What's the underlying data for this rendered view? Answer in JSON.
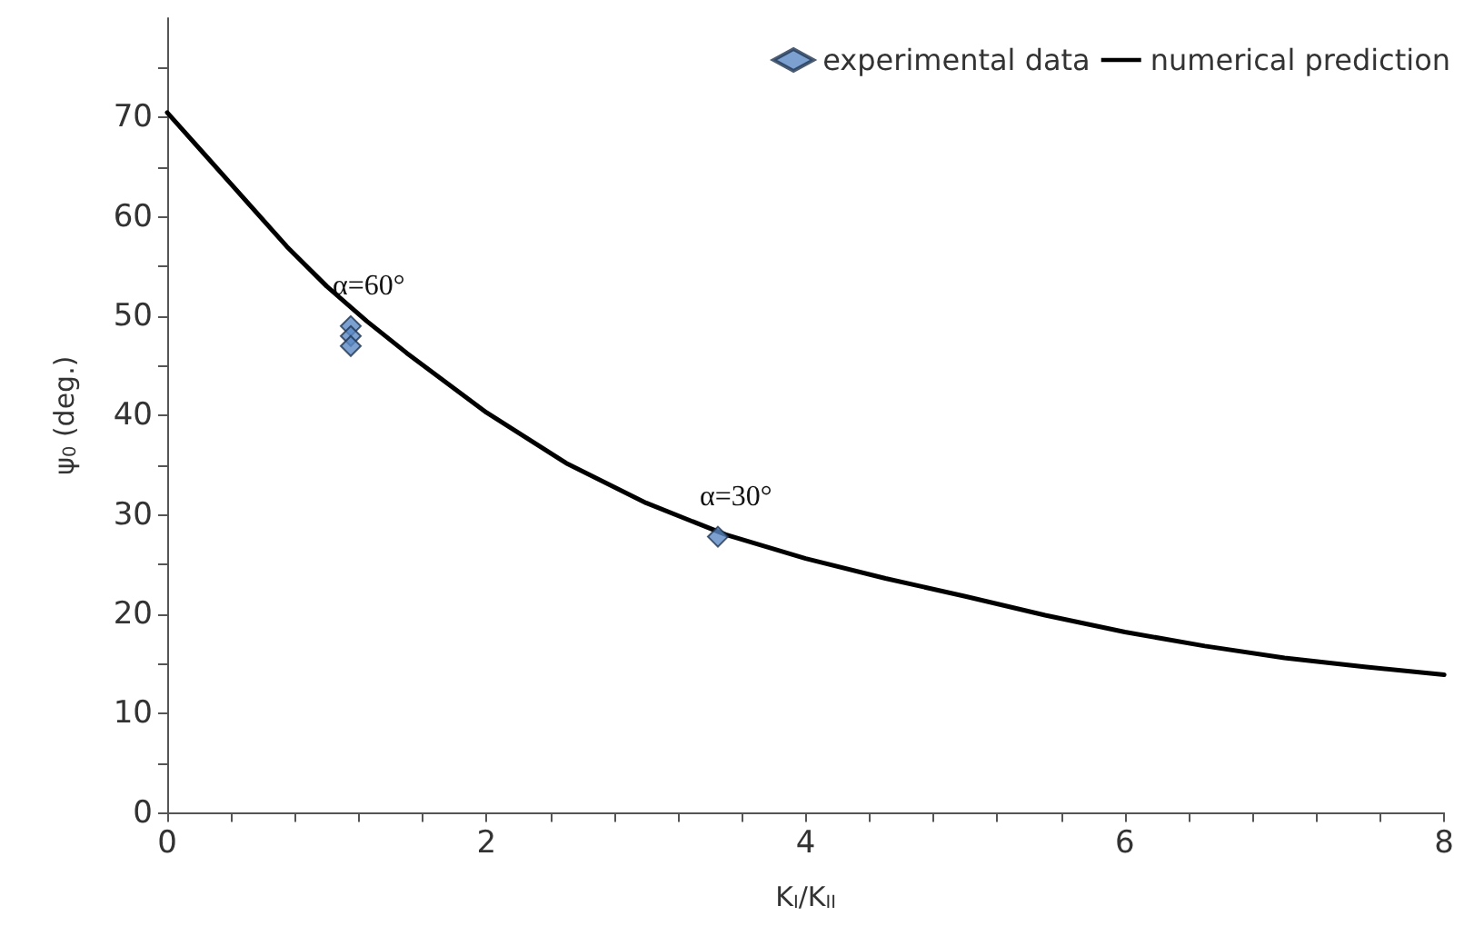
{
  "chart_data": {
    "type": "scatter",
    "xlabel": "K$_{I}$/K$_{II}$",
    "ylabel": "ψ$_{0}$ (deg.)",
    "xlim": [
      0,
      8
    ],
    "ylim": [
      0,
      80
    ],
    "xticks": [
      0,
      {
        "value": 0.4,
        "label": null
      },
      {
        "value": 0.8,
        "label": null
      },
      {
        "value": 1.2,
        "label": null
      },
      {
        "value": 1.6,
        "label": null
      },
      2,
      {
        "value": 2.4,
        "label": null
      },
      {
        "value": 2.8,
        "label": null
      },
      {
        "value": 3.2,
        "label": null
      },
      {
        "value": 3.6,
        "label": null
      },
      4,
      {
        "value": 4.4,
        "label": null
      },
      {
        "value": 4.8,
        "label": null
      },
      {
        "value": 5.2,
        "label": null
      },
      {
        "value": 5.6,
        "label": null
      },
      6,
      {
        "value": 6.4,
        "label": null
      },
      {
        "value": 6.8,
        "label": null
      },
      {
        "value": 7.2,
        "label": null
      },
      {
        "value": 7.6,
        "label": null
      },
      8
    ],
    "yticks": [
      0,
      {
        "value": 5,
        "label": null
      },
      10,
      {
        "value": 15,
        "label": null
      },
      20,
      {
        "value": 25,
        "label": null
      },
      30,
      {
        "value": 35,
        "label": null
      },
      40,
      {
        "value": 45,
        "label": null
      },
      50,
      {
        "value": 55,
        "label": null
      },
      60,
      {
        "value": 65,
        "label": null
      },
      70,
      {
        "value": 75,
        "label": null
      }
    ],
    "series": [
      {
        "name": "experimental data",
        "color": "#5b8ac6",
        "marker": "diamond",
        "x": [
          1.15,
          1.15,
          1.15,
          3.45
        ],
        "values": [
          49,
          48,
          47,
          27.8
        ]
      },
      {
        "name": "numerical prediction",
        "type": "line",
        "color": "#000000",
        "marker": "none",
        "line_style": "solid",
        "x": [
          0,
          0.25,
          0.5,
          0.75,
          1,
          1.25,
          1.5,
          2,
          2.5,
          3,
          3.5,
          4,
          4.5,
          5,
          5.5,
          6,
          6.5,
          7,
          7.5,
          8
        ],
        "values": [
          70.5,
          66,
          61.5,
          57,
          53,
          49.5,
          46.3,
          40.3,
          35.2,
          31.2,
          28,
          25.6,
          23.6,
          21.8,
          19.9,
          18.2,
          16.8,
          15.6,
          14.7,
          13.9
        ]
      }
    ],
    "annotations": [
      {
        "text": "α=60°",
        "x": 1.15,
        "y": 49
      },
      {
        "text": "α=30°",
        "x": 3.45,
        "y": 27.8
      }
    ],
    "legend": "top right",
    "grid": false
  }
}
